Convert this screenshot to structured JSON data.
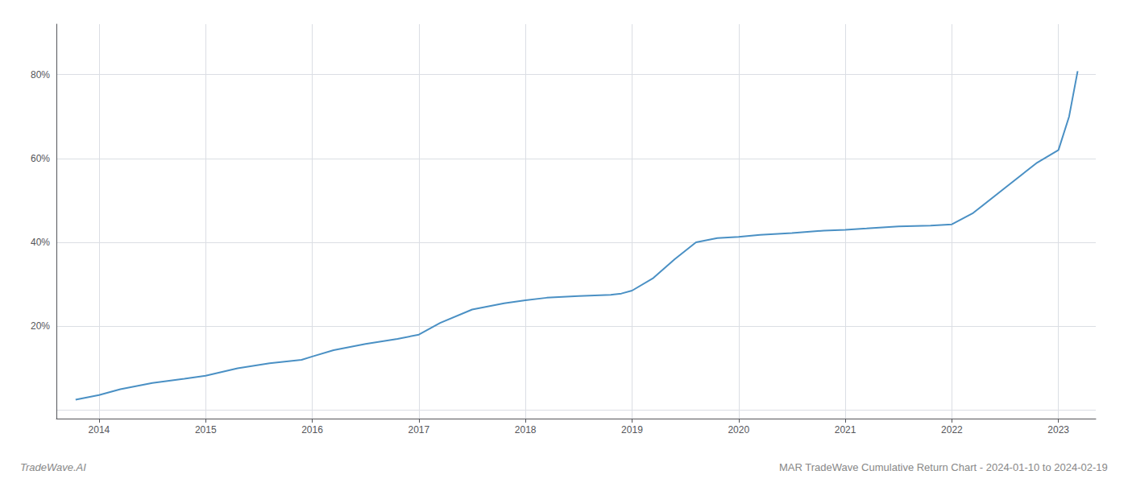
{
  "chart_data": {
    "type": "line",
    "title": "MAR TradeWave Cumulative Return Chart - 2024-01-10 to 2024-02-19",
    "annotations": [
      "TradeWave.AI"
    ],
    "x": [
      2013.78,
      2014.0,
      2014.2,
      2014.5,
      2014.8,
      2015.0,
      2015.3,
      2015.6,
      2015.9,
      2016.0,
      2016.2,
      2016.5,
      2016.8,
      2017.0,
      2017.2,
      2017.5,
      2017.8,
      2018.0,
      2018.2,
      2018.5,
      2018.8,
      2018.9,
      2019.0,
      2019.2,
      2019.4,
      2019.6,
      2019.8,
      2020.0,
      2020.2,
      2020.5,
      2020.8,
      2021.0,
      2021.2,
      2021.5,
      2021.8,
      2022.0,
      2022.2,
      2022.5,
      2022.8,
      2023.0,
      2023.1,
      2023.18
    ],
    "values": [
      0.025,
      0.036,
      0.05,
      0.065,
      0.075,
      0.082,
      0.1,
      0.112,
      0.12,
      0.128,
      0.143,
      0.158,
      0.17,
      0.18,
      0.208,
      0.24,
      0.255,
      0.262,
      0.268,
      0.272,
      0.275,
      0.278,
      0.285,
      0.315,
      0.36,
      0.4,
      0.41,
      0.413,
      0.418,
      0.422,
      0.428,
      0.43,
      0.433,
      0.438,
      0.44,
      0.443,
      0.47,
      0.53,
      0.59,
      0.62,
      0.7,
      0.808
    ],
    "color": "#4a90c4",
    "xlim": [
      2013.6,
      2023.35
    ],
    "xticks": [
      2014,
      2015,
      2016,
      2017,
      2018,
      2019,
      2020,
      2021,
      2022,
      2023
    ],
    "ylim": [
      -0.02,
      0.92
    ],
    "yticks": [
      {
        "value": 0.0,
        "label": null
      },
      {
        "value": 0.2,
        "label": "20%"
      },
      {
        "value": 0.4,
        "label": "40%"
      },
      {
        "value": 0.6,
        "label": "60%"
      },
      {
        "value": 0.8,
        "label": "80%"
      }
    ],
    "grid": true
  }
}
